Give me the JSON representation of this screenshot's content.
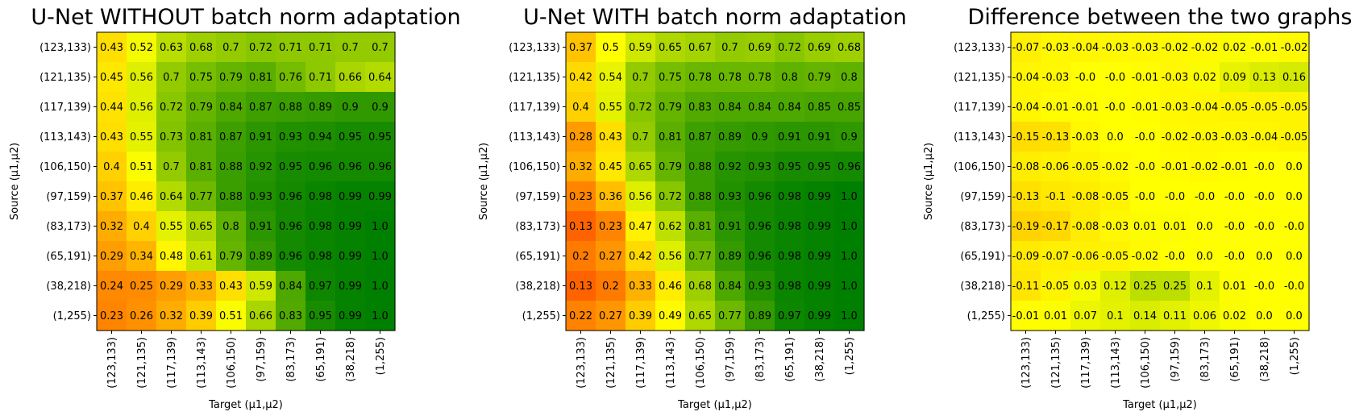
{
  "chart_data": [
    {
      "type": "heatmap",
      "title": "U-Net WITHOUT batch norm adaptation",
      "xlabel": "Target (μ1,μ2)",
      "ylabel": "Source (μ1,μ2)",
      "x_categories": [
        "(123,133)",
        "(121,135)",
        "(117,139)",
        "(113,143)",
        "(106,150)",
        "(97,159)",
        "(83,173)",
        "(65,191)",
        "(38,218)",
        "(1,255)"
      ],
      "y_categories": [
        "(123,133)",
        "(121,135)",
        "(117,139)",
        "(113,143)",
        "(106,150)",
        "(97,159)",
        "(83,173)",
        "(65,191)",
        "(38,218)",
        "(1,255)"
      ],
      "values": [
        [
          0.43,
          0.52,
          0.63,
          0.68,
          0.7,
          0.72,
          0.71,
          0.71,
          0.7,
          0.7
        ],
        [
          0.45,
          0.56,
          0.7,
          0.75,
          0.79,
          0.81,
          0.76,
          0.71,
          0.66,
          0.64
        ],
        [
          0.44,
          0.56,
          0.72,
          0.79,
          0.84,
          0.87,
          0.88,
          0.89,
          0.9,
          0.9
        ],
        [
          0.43,
          0.55,
          0.73,
          0.81,
          0.87,
          0.91,
          0.93,
          0.94,
          0.95,
          0.95
        ],
        [
          0.4,
          0.51,
          0.7,
          0.81,
          0.88,
          0.92,
          0.95,
          0.96,
          0.96,
          0.96
        ],
        [
          0.37,
          0.46,
          0.64,
          0.77,
          0.88,
          0.93,
          0.96,
          0.98,
          0.99,
          0.99
        ],
        [
          0.32,
          0.4,
          0.55,
          0.65,
          0.8,
          0.91,
          0.96,
          0.98,
          0.99,
          1.0
        ],
        [
          0.29,
          0.34,
          0.48,
          0.61,
          0.79,
          0.89,
          0.96,
          0.98,
          0.99,
          1.0
        ],
        [
          0.24,
          0.25,
          0.29,
          0.33,
          0.43,
          0.59,
          0.84,
          0.97,
          0.99,
          1.0
        ],
        [
          0.23,
          0.26,
          0.32,
          0.39,
          0.51,
          0.66,
          0.83,
          0.95,
          0.99,
          1.0
        ]
      ],
      "value_labels": [
        [
          "0.43",
          "0.52",
          "0.63",
          "0.68",
          "0.7",
          "0.72",
          "0.71",
          "0.71",
          "0.7",
          "0.7"
        ],
        [
          "0.45",
          "0.56",
          "0.7",
          "0.75",
          "0.79",
          "0.81",
          "0.76",
          "0.71",
          "0.66",
          "0.64"
        ],
        [
          "0.44",
          "0.56",
          "0.72",
          "0.79",
          "0.84",
          "0.87",
          "0.88",
          "0.89",
          "0.9",
          "0.9"
        ],
        [
          "0.43",
          "0.55",
          "0.73",
          "0.81",
          "0.87",
          "0.91",
          "0.93",
          "0.94",
          "0.95",
          "0.95"
        ],
        [
          "0.4",
          "0.51",
          "0.7",
          "0.81",
          "0.88",
          "0.92",
          "0.95",
          "0.96",
          "0.96",
          "0.96"
        ],
        [
          "0.37",
          "0.46",
          "0.64",
          "0.77",
          "0.88",
          "0.93",
          "0.96",
          "0.98",
          "0.99",
          "0.99"
        ],
        [
          "0.32",
          "0.4",
          "0.55",
          "0.65",
          "0.8",
          "0.91",
          "0.96",
          "0.98",
          "0.99",
          "1.0"
        ],
        [
          "0.29",
          "0.34",
          "0.48",
          "0.61",
          "0.79",
          "0.89",
          "0.96",
          "0.98",
          "0.99",
          "1.0"
        ],
        [
          "0.24",
          "0.25",
          "0.29",
          "0.33",
          "0.43",
          "0.59",
          "0.84",
          "0.97",
          "0.99",
          "1.0"
        ],
        [
          "0.23",
          "0.26",
          "0.32",
          "0.39",
          "0.51",
          "0.66",
          "0.83",
          "0.95",
          "0.99",
          "1.0"
        ]
      ],
      "color_range": [
        0,
        1
      ],
      "colormap": "orange-yellow-green"
    },
    {
      "type": "heatmap",
      "title": "U-Net WITH batch norm adaptation",
      "xlabel": "Target (μ1,μ2)",
      "ylabel": "Source (μ1,μ2)",
      "x_categories": [
        "(123,133)",
        "(121,135)",
        "(117,139)",
        "(113,143)",
        "(106,150)",
        "(97,159)",
        "(83,173)",
        "(65,191)",
        "(38,218)",
        "(1,255)"
      ],
      "y_categories": [
        "(123,133)",
        "(121,135)",
        "(117,139)",
        "(113,143)",
        "(106,150)",
        "(97,159)",
        "(83,173)",
        "(65,191)",
        "(38,218)",
        "(1,255)"
      ],
      "values": [
        [
          0.37,
          0.5,
          0.59,
          0.65,
          0.67,
          0.7,
          0.69,
          0.72,
          0.69,
          0.68
        ],
        [
          0.42,
          0.54,
          0.7,
          0.75,
          0.78,
          0.78,
          0.78,
          0.8,
          0.79,
          0.8
        ],
        [
          0.4,
          0.55,
          0.72,
          0.79,
          0.83,
          0.84,
          0.84,
          0.84,
          0.85,
          0.85
        ],
        [
          0.28,
          0.43,
          0.7,
          0.81,
          0.87,
          0.89,
          0.9,
          0.91,
          0.91,
          0.9
        ],
        [
          0.32,
          0.45,
          0.65,
          0.79,
          0.88,
          0.92,
          0.93,
          0.95,
          0.95,
          0.96
        ],
        [
          0.23,
          0.36,
          0.56,
          0.72,
          0.88,
          0.93,
          0.96,
          0.98,
          0.99,
          1.0
        ],
        [
          0.13,
          0.23,
          0.47,
          0.62,
          0.81,
          0.91,
          0.96,
          0.98,
          0.99,
          1.0
        ],
        [
          0.2,
          0.27,
          0.42,
          0.56,
          0.77,
          0.89,
          0.96,
          0.98,
          0.99,
          1.0
        ],
        [
          0.13,
          0.2,
          0.33,
          0.46,
          0.68,
          0.84,
          0.93,
          0.98,
          0.99,
          1.0
        ],
        [
          0.22,
          0.27,
          0.39,
          0.49,
          0.65,
          0.77,
          0.89,
          0.97,
          0.99,
          1.0
        ]
      ],
      "value_labels": [
        [
          "0.37",
          "0.5",
          "0.59",
          "0.65",
          "0.67",
          "0.7",
          "0.69",
          "0.72",
          "0.69",
          "0.68"
        ],
        [
          "0.42",
          "0.54",
          "0.7",
          "0.75",
          "0.78",
          "0.78",
          "0.78",
          "0.8",
          "0.79",
          "0.8"
        ],
        [
          "0.4",
          "0.55",
          "0.72",
          "0.79",
          "0.83",
          "0.84",
          "0.84",
          "0.84",
          "0.85",
          "0.85"
        ],
        [
          "0.28",
          "0.43",
          "0.7",
          "0.81",
          "0.87",
          "0.89",
          "0.9",
          "0.91",
          "0.91",
          "0.9"
        ],
        [
          "0.32",
          "0.45",
          "0.65",
          "0.79",
          "0.88",
          "0.92",
          "0.93",
          "0.95",
          "0.95",
          "0.96"
        ],
        [
          "0.23",
          "0.36",
          "0.56",
          "0.72",
          "0.88",
          "0.93",
          "0.96",
          "0.98",
          "0.99",
          "1.0"
        ],
        [
          "0.13",
          "0.23",
          "0.47",
          "0.62",
          "0.81",
          "0.91",
          "0.96",
          "0.98",
          "0.99",
          "1.0"
        ],
        [
          "0.2",
          "0.27",
          "0.42",
          "0.56",
          "0.77",
          "0.89",
          "0.96",
          "0.98",
          "0.99",
          "1.0"
        ],
        [
          "0.13",
          "0.2",
          "0.33",
          "0.46",
          "0.68",
          "0.84",
          "0.93",
          "0.98",
          "0.99",
          "1.0"
        ],
        [
          "0.22",
          "0.27",
          "0.39",
          "0.49",
          "0.65",
          "0.77",
          "0.89",
          "0.97",
          "0.99",
          "1.0"
        ]
      ],
      "color_range": [
        0,
        1
      ],
      "colormap": "orange-yellow-green"
    },
    {
      "type": "heatmap",
      "title": "Difference between the two graphs",
      "xlabel": "Target (μ1,μ2)",
      "ylabel": "Source (μ1,μ2)",
      "x_categories": [
        "(123,133)",
        "(121,135)",
        "(117,139)",
        "(113,143)",
        "(106,150)",
        "(97,159)",
        "(83,173)",
        "(65,191)",
        "(38,218)",
        "(1,255)"
      ],
      "y_categories": [
        "(123,133)",
        "(121,135)",
        "(117,139)",
        "(113,143)",
        "(106,150)",
        "(97,159)",
        "(83,173)",
        "(65,191)",
        "(38,218)",
        "(1,255)"
      ],
      "values": [
        [
          -0.07,
          -0.03,
          -0.04,
          -0.03,
          -0.03,
          -0.02,
          -0.02,
          0.02,
          -0.01,
          -0.02
        ],
        [
          -0.04,
          -0.03,
          0.0,
          0.0,
          -0.01,
          -0.03,
          0.02,
          0.09,
          0.13,
          0.16
        ],
        [
          -0.04,
          -0.01,
          -0.01,
          0.0,
          -0.01,
          -0.03,
          -0.04,
          -0.05,
          -0.05,
          -0.05
        ],
        [
          -0.15,
          -0.13,
          -0.03,
          0.0,
          0.0,
          -0.02,
          -0.03,
          -0.03,
          -0.04,
          -0.05
        ],
        [
          -0.08,
          -0.06,
          -0.05,
          -0.02,
          0.0,
          -0.01,
          -0.02,
          -0.01,
          0.0,
          0.0
        ],
        [
          -0.13,
          -0.1,
          -0.08,
          -0.05,
          0.0,
          0.0,
          0.0,
          0.0,
          0.0,
          0.0
        ],
        [
          -0.19,
          -0.17,
          -0.08,
          -0.03,
          0.01,
          0.01,
          0.0,
          0.0,
          0.0,
          0.0
        ],
        [
          -0.09,
          -0.07,
          -0.06,
          -0.05,
          -0.02,
          0.0,
          0.0,
          0.0,
          0.0,
          0.0
        ],
        [
          -0.11,
          -0.05,
          0.03,
          0.12,
          0.25,
          0.25,
          0.1,
          0.01,
          0.0,
          0.0
        ],
        [
          -0.01,
          0.01,
          0.07,
          0.1,
          0.14,
          0.11,
          0.06,
          0.02,
          0.0,
          0.0
        ]
      ],
      "value_labels": [
        [
          "-0.07",
          "-0.03",
          "-0.04",
          "-0.03",
          "-0.03",
          "-0.02",
          "-0.02",
          "0.02",
          "-0.01",
          "-0.02"
        ],
        [
          "-0.04",
          "-0.03",
          "-0.0",
          "-0.0",
          "-0.01",
          "-0.03",
          "0.02",
          "0.09",
          "0.13",
          "0.16"
        ],
        [
          "-0.04",
          "-0.01",
          "-0.01",
          "-0.0",
          "-0.01",
          "-0.03",
          "-0.04",
          "-0.05",
          "-0.05",
          "-0.05"
        ],
        [
          "-0.15",
          "-0.13",
          "-0.03",
          "0.0",
          "-0.0",
          "-0.02",
          "-0.03",
          "-0.03",
          "-0.04",
          "-0.05"
        ],
        [
          "-0.08",
          "-0.06",
          "-0.05",
          "-0.02",
          "-0.0",
          "-0.01",
          "-0.02",
          "-0.01",
          "-0.0",
          "0.0"
        ],
        [
          "-0.13",
          "-0.1",
          "-0.08",
          "-0.05",
          "-0.0",
          "-0.0",
          "-0.0",
          "-0.0",
          "-0.0",
          "0.0"
        ],
        [
          "-0.19",
          "-0.17",
          "-0.08",
          "-0.03",
          "0.01",
          "0.01",
          "0.0",
          "-0.0",
          "-0.0",
          "-0.0"
        ],
        [
          "-0.09",
          "-0.07",
          "-0.06",
          "-0.05",
          "-0.02",
          "-0.0",
          "0.0",
          "-0.0",
          "0.0",
          "0.0"
        ],
        [
          "-0.11",
          "-0.05",
          "0.03",
          "0.12",
          "0.25",
          "0.25",
          "0.1",
          "0.01",
          "-0.0",
          "-0.0"
        ],
        [
          "-0.01",
          "0.01",
          "0.07",
          "0.1",
          "0.14",
          "0.11",
          "0.06",
          "0.02",
          "0.0",
          "0.0"
        ]
      ],
      "color_range": [
        -1,
        1
      ],
      "colormap": "orange-yellow-green"
    }
  ]
}
